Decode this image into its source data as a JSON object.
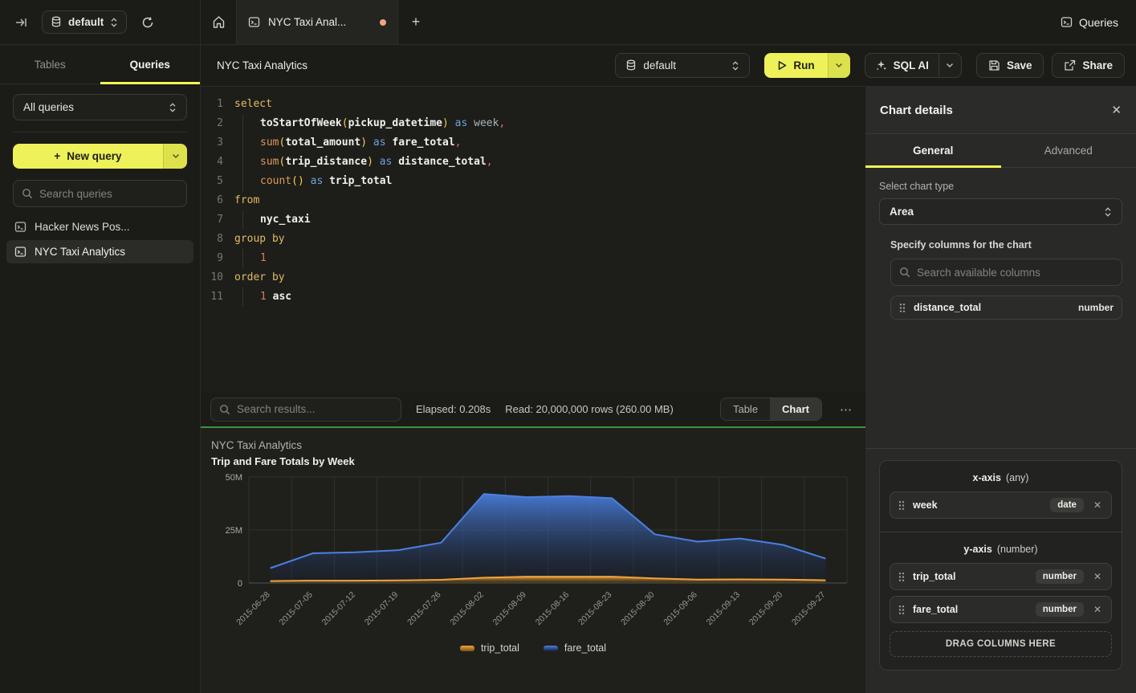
{
  "icons": {
    "plus": "+",
    "ellipsis": "⋯",
    "close": "✕"
  },
  "topbar": {
    "database_selector": "default",
    "tab_title": "NYC Taxi Anal...",
    "queries_label": "Queries"
  },
  "sidebar": {
    "tabs": [
      {
        "label": "Tables"
      },
      {
        "label": "Queries"
      }
    ],
    "filter_select": "All queries",
    "new_query_label": "New query",
    "search_placeholder": "Search queries",
    "items": [
      {
        "label": "Hacker News Pos...",
        "selected": false
      },
      {
        "label": "NYC Taxi Analytics",
        "selected": true
      }
    ]
  },
  "toolbar": {
    "title": "NYC Taxi Analytics",
    "database_selector": "default",
    "run_label": "Run",
    "sql_ai_label": "SQL AI",
    "save_label": "Save",
    "share_label": "Share"
  },
  "editor": {
    "lines": [
      {
        "ind": 0,
        "tokens": [
          {
            "t": "select",
            "c": "kw"
          }
        ]
      },
      {
        "ind": 1,
        "tokens": [
          {
            "t": "toStartOfWeek",
            "c": "fn"
          },
          {
            "t": "(",
            "c": "pr"
          },
          {
            "t": "pickup_datetime",
            "c": "fn"
          },
          {
            "t": ")",
            "c": "pr"
          },
          {
            "t": " ",
            "c": "pl"
          },
          {
            "t": "as",
            "c": "op"
          },
          {
            "t": " ",
            "c": "pl"
          },
          {
            "t": "week",
            "c": "al"
          },
          {
            "t": ",",
            "c": "num"
          }
        ]
      },
      {
        "ind": 1,
        "tokens": [
          {
            "t": "sum",
            "c": "agg"
          },
          {
            "t": "(",
            "c": "pr"
          },
          {
            "t": "total_amount",
            "c": "fn"
          },
          {
            "t": ")",
            "c": "pr"
          },
          {
            "t": " ",
            "c": "pl"
          },
          {
            "t": "as",
            "c": "op"
          },
          {
            "t": " ",
            "c": "pl"
          },
          {
            "t": "fare_total",
            "c": "fn"
          },
          {
            "t": ",",
            "c": "num"
          }
        ]
      },
      {
        "ind": 1,
        "tokens": [
          {
            "t": "sum",
            "c": "agg"
          },
          {
            "t": "(",
            "c": "pr"
          },
          {
            "t": "trip_distance",
            "c": "fn"
          },
          {
            "t": ")",
            "c": "pr"
          },
          {
            "t": " ",
            "c": "pl"
          },
          {
            "t": "as",
            "c": "op"
          },
          {
            "t": " ",
            "c": "pl"
          },
          {
            "t": "distance_total",
            "c": "fn"
          },
          {
            "t": ",",
            "c": "num"
          }
        ]
      },
      {
        "ind": 1,
        "tokens": [
          {
            "t": "count",
            "c": "agg"
          },
          {
            "t": "()",
            "c": "pr"
          },
          {
            "t": " ",
            "c": "pl"
          },
          {
            "t": "as",
            "c": "op"
          },
          {
            "t": " ",
            "c": "pl"
          },
          {
            "t": "trip_total",
            "c": "fn"
          }
        ]
      },
      {
        "ind": 0,
        "tokens": [
          {
            "t": "from",
            "c": "kw"
          }
        ]
      },
      {
        "ind": 1,
        "tokens": [
          {
            "t": "nyc_taxi",
            "c": "fn"
          }
        ]
      },
      {
        "ind": 0,
        "tokens": [
          {
            "t": "group by",
            "c": "kw"
          }
        ]
      },
      {
        "ind": 1,
        "tokens": [
          {
            "t": "1",
            "c": "num"
          }
        ]
      },
      {
        "ind": 0,
        "tokens": [
          {
            "t": "order by",
            "c": "kw"
          }
        ]
      },
      {
        "ind": 1,
        "tokens": [
          {
            "t": "1",
            "c": "num"
          },
          {
            "t": " ",
            "c": "pl"
          },
          {
            "t": "asc",
            "c": "fn"
          }
        ]
      }
    ]
  },
  "results": {
    "search_placeholder": "Search results...",
    "elapsed": "Elapsed: 0.208s",
    "read": "Read: 20,000,000 rows (260.00 MB)",
    "view_toggle": [
      {
        "label": "Table"
      },
      {
        "label": "Chart"
      }
    ],
    "active_view": "Chart"
  },
  "chart_panel": {
    "title": "NYC Taxi Analytics",
    "subtitle": "Trip and Fare Totals by Week"
  },
  "chart_data": {
    "type": "area",
    "title": "NYC Taxi Analytics",
    "subtitle": "Trip and Fare Totals by Week",
    "x": [
      "2015-06-28",
      "2015-07-05",
      "2015-07-12",
      "2015-07-19",
      "2015-07-26",
      "2015-08-02",
      "2015-08-09",
      "2015-08-16",
      "2015-08-23",
      "2015-08-30",
      "2015-09-06",
      "2015-09-13",
      "2015-09-20",
      "2015-09-27"
    ],
    "series": [
      {
        "name": "trip_total",
        "color": "#f0a43c",
        "color_dark": "#7a5410",
        "values": [
          900000,
          1100000,
          1100000,
          1200000,
          1500000,
          2500000,
          3000000,
          3000000,
          3000000,
          2200000,
          1600000,
          1700000,
          1600000,
          1300000
        ]
      },
      {
        "name": "fare_total",
        "color": "#4a80e0",
        "color_dark": "#151f38",
        "values": [
          7000000,
          14000000,
          14500000,
          15500000,
          19000000,
          42000000,
          40500000,
          41000000,
          40000000,
          23000000,
          19500000,
          21000000,
          18000000,
          11500000
        ]
      }
    ],
    "y_ticks": [
      {
        "label": "0",
        "value": 0
      },
      {
        "label": "25M",
        "value": 25000000
      },
      {
        "label": "50M",
        "value": 50000000
      }
    ],
    "y_max": 50000000,
    "xlabel": "",
    "ylabel": "",
    "grid": true,
    "legend_position": "bottom"
  },
  "details_panel": {
    "title": "Chart details",
    "tabs": [
      {
        "label": "General"
      },
      {
        "label": "Advanced"
      }
    ],
    "active_tab": "General",
    "chart_type_label": "Select chart type",
    "chart_type_value": "Area",
    "columns_label": "Specify columns for the chart",
    "columns_search_placeholder": "Search available columns",
    "available_columns": [
      {
        "name": "distance_total",
        "type": "number"
      }
    ],
    "x_axis": {
      "label": "x-axis",
      "hint": "(any)",
      "columns": [
        {
          "name": "week",
          "type": "date"
        }
      ]
    },
    "y_axis": {
      "label": "y-axis",
      "hint": "(number)",
      "columns": [
        {
          "name": "trip_total",
          "type": "number"
        },
        {
          "name": "fare_total",
          "type": "number"
        }
      ]
    },
    "drop_zone_label": "DRAG COLUMNS HERE"
  }
}
